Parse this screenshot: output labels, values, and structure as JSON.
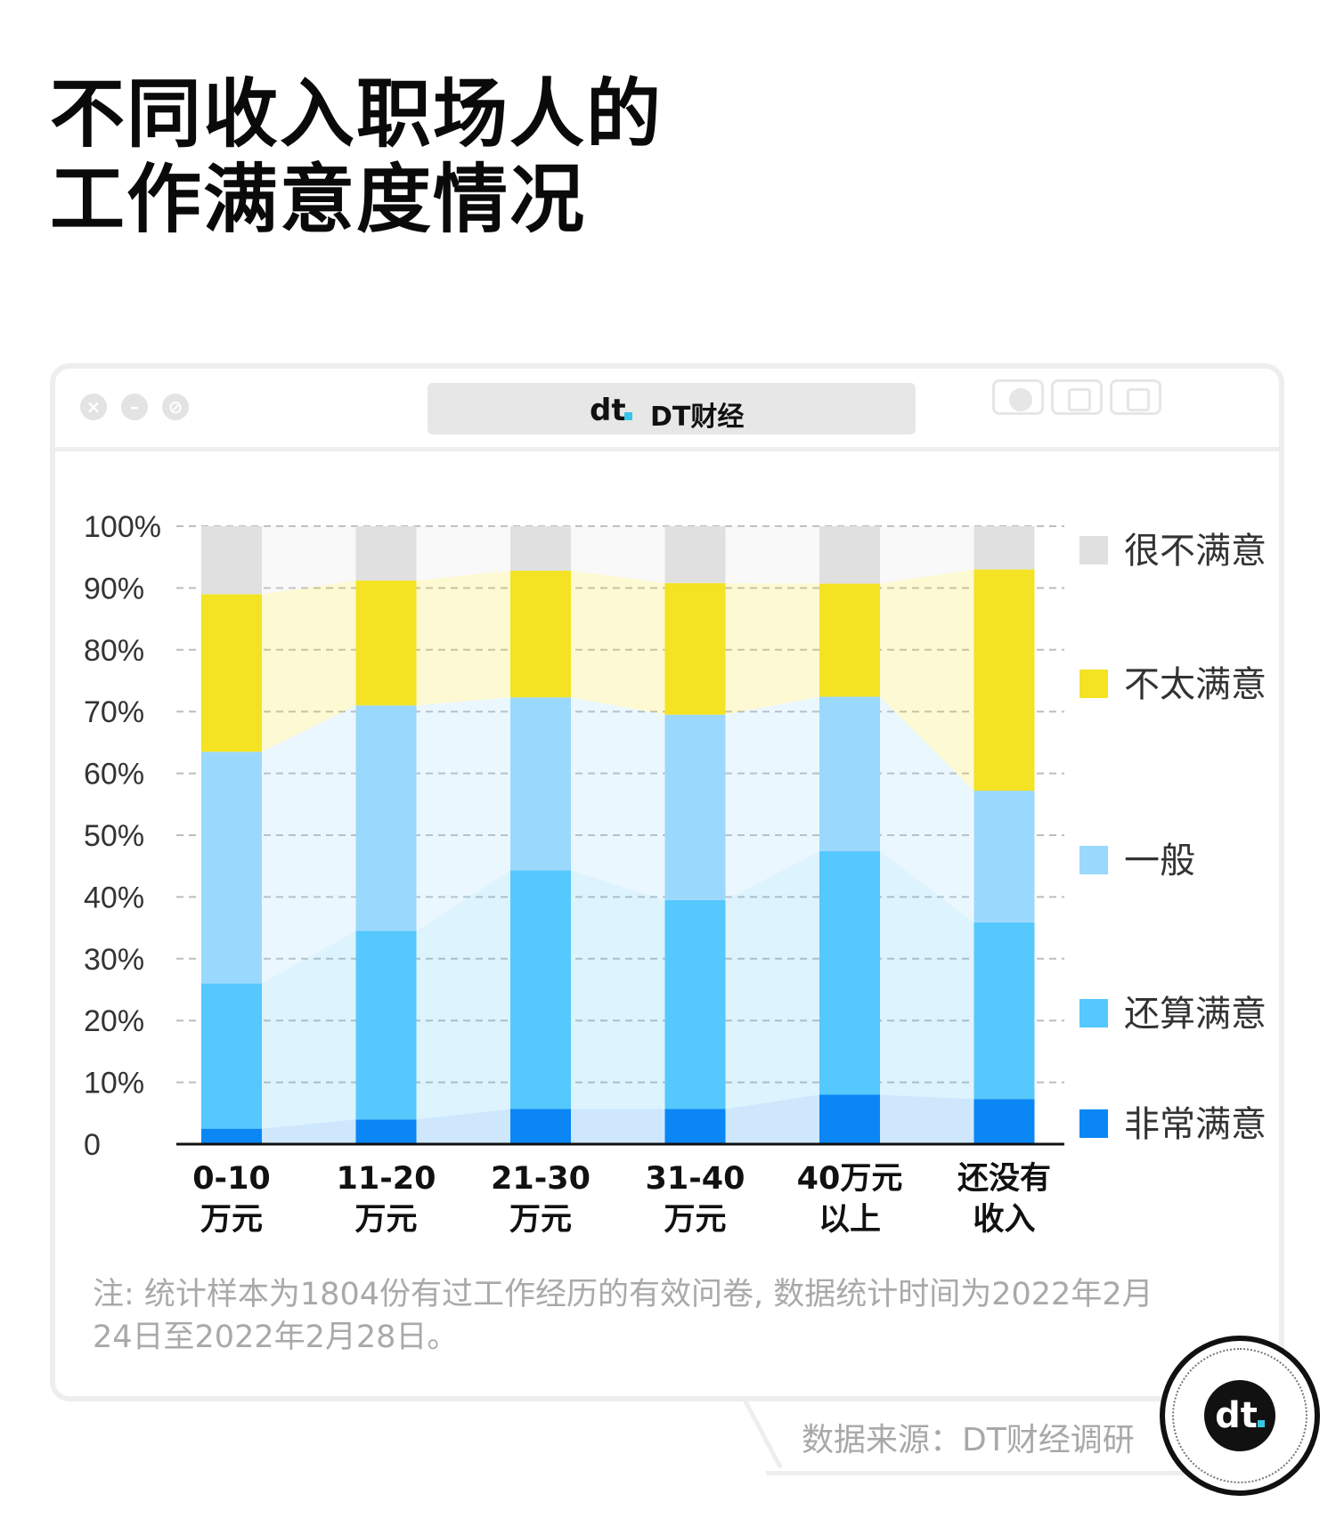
{
  "title_lines": [
    "不同收入职场人的",
    "工作满意度情况"
  ],
  "window": {
    "brand_logo": "dt",
    "brand_text": "DT财经"
  },
  "note": "注: 统计样本为1804份有过工作经历的有效问卷, 数据统计时间为2022年2月24日至2022年2月28日。",
  "source": "数据来源：DT财经调研",
  "badge_logo": "dt",
  "chart_data": {
    "type": "bar",
    "stacked": true,
    "categories": [
      [
        "0-10",
        "万元"
      ],
      [
        "11-20",
        "万元"
      ],
      [
        "21-30",
        "万元"
      ],
      [
        "31-40",
        "万元"
      ],
      [
        "40万元",
        "以上"
      ],
      [
        "还没有",
        "收入"
      ]
    ],
    "series": [
      {
        "name": "非常满意",
        "color": "#0a86f5",
        "values": [
          2.5,
          4.0,
          5.7,
          5.7,
          8.0,
          7.3
        ]
      },
      {
        "name": "还算满意",
        "color": "#55c8fd",
        "values": [
          23.5,
          30.5,
          38.6,
          33.8,
          39.4,
          28.6
        ]
      },
      {
        "name": "一般",
        "color": "#9bd8fd",
        "values": [
          37.5,
          36.5,
          28.0,
          30.0,
          25.0,
          21.3
        ]
      },
      {
        "name": "不太满意",
        "color": "#f3e322",
        "values": [
          25.5,
          20.2,
          20.5,
          21.3,
          18.3,
          35.8
        ]
      },
      {
        "name": "很不满意",
        "color": "#e0e0e0",
        "values": [
          11.0,
          8.8,
          7.2,
          9.2,
          9.3,
          7.0
        ]
      }
    ],
    "ytick_labels": [
      "0",
      "10%",
      "20%",
      "30%",
      "40%",
      "50%",
      "60%",
      "70%",
      "80%",
      "90%",
      "100%"
    ],
    "ylim": [
      0,
      100
    ],
    "grid": true,
    "legend_position": "right",
    "legend_order": [
      "很不满意",
      "不太满意",
      "一般",
      "还算满意",
      "非常满意"
    ]
  }
}
